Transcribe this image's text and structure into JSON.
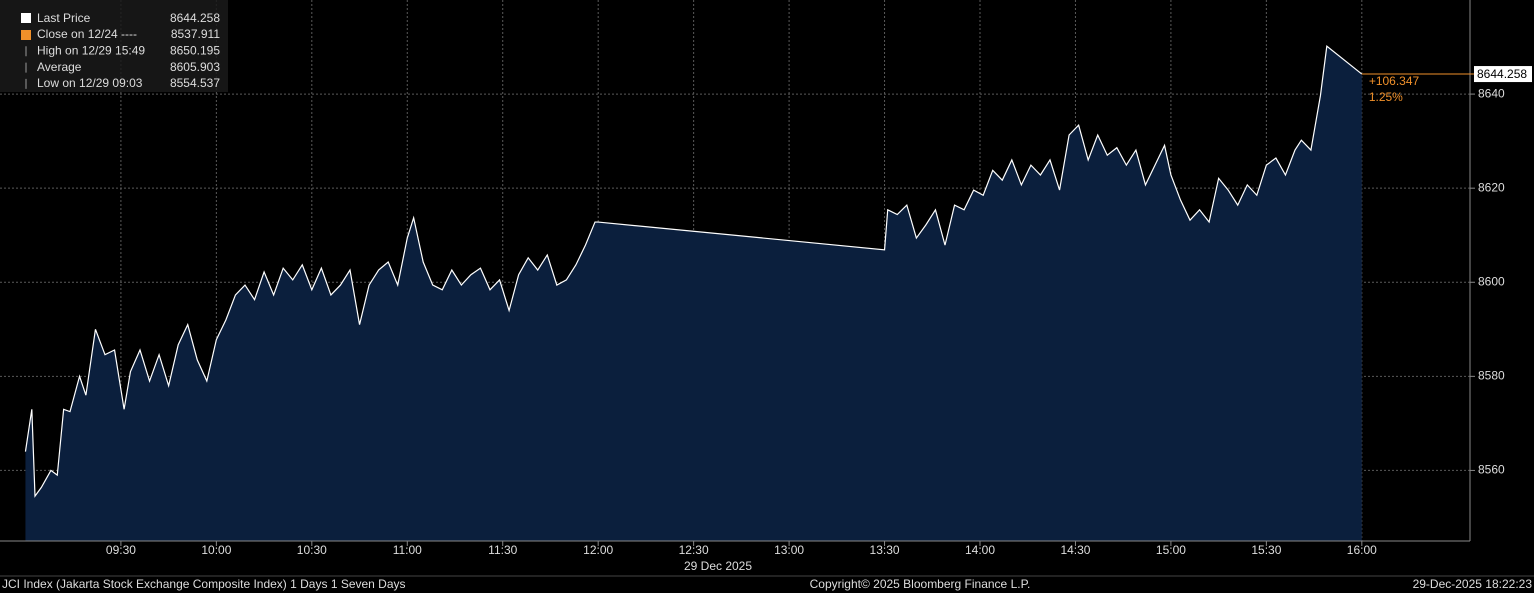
{
  "chart_data": {
    "type": "area",
    "x": [
      "09:00",
      "09:02",
      "09:03",
      "09:05",
      "09:08",
      "09:10",
      "09:12",
      "09:14",
      "09:17",
      "09:19",
      "09:22",
      "09:25",
      "09:28",
      "09:31",
      "09:33",
      "09:36",
      "09:39",
      "09:42",
      "09:45",
      "09:48",
      "09:51",
      "09:54",
      "09:57",
      "10:00",
      "10:03",
      "10:06",
      "10:09",
      "10:12",
      "10:15",
      "10:18",
      "10:21",
      "10:24",
      "10:27",
      "10:30",
      "10:33",
      "10:36",
      "10:39",
      "10:42",
      "10:45",
      "10:48",
      "10:51",
      "10:54",
      "10:57",
      "11:00",
      "11:02",
      "11:05",
      "11:08",
      "11:11",
      "11:14",
      "11:17",
      "11:20",
      "11:23",
      "11:26",
      "11:29",
      "11:32",
      "11:35",
      "11:38",
      "11:41",
      "11:44",
      "11:47",
      "11:50",
      "11:53",
      "11:56",
      "11:59",
      "12:00",
      "13:30",
      "13:31",
      "13:34",
      "13:37",
      "13:40",
      "13:43",
      "13:46",
      "13:49",
      "13:52",
      "13:55",
      "13:58",
      "14:01",
      "14:04",
      "14:07",
      "14:10",
      "14:13",
      "14:16",
      "14:19",
      "14:22",
      "14:25",
      "14:28",
      "14:31",
      "14:34",
      "14:37",
      "14:40",
      "14:43",
      "14:46",
      "14:49",
      "14:52",
      "14:55",
      "14:58",
      "15:00",
      "15:03",
      "15:06",
      "15:09",
      "15:12",
      "15:15",
      "15:18",
      "15:21",
      "15:24",
      "15:27",
      "15:30",
      "15:33",
      "15:36",
      "15:39",
      "15:41",
      "15:44",
      "15:47",
      "15:49",
      "16:00"
    ],
    "series": [
      {
        "name": "Last Price",
        "color": "#ffffff",
        "fill": "#0b1f3d",
        "values": [
          8564,
          8573,
          8554.537,
          8556.4,
          8560,
          8559,
          8573,
          8572.5,
          8580,
          8576,
          8590,
          8584.6,
          8585.6,
          8573,
          8581,
          8585.6,
          8579,
          8584.6,
          8578,
          8586.7,
          8591,
          8583.5,
          8579,
          8587.8,
          8592,
          8597.3,
          8599.4,
          8596.3,
          8602.2,
          8597.3,
          8603,
          8600.5,
          8603.7,
          8598.4,
          8603,
          8597.3,
          8599.4,
          8602.6,
          8591,
          8599.4,
          8602.6,
          8604.3,
          8599.4,
          8609.4,
          8613.7,
          8604.3,
          8599.4,
          8598.4,
          8602.6,
          8599.4,
          8601.6,
          8603,
          8598.4,
          8600.5,
          8594,
          8601.6,
          8605.2,
          8602.6,
          8605.8,
          8599.4,
          8600.5,
          8603.7,
          8607.9,
          8612.8,
          8612.8,
          8606.9,
          8615.4,
          8614.4,
          8616.4,
          8609.4,
          8612.2,
          8615.4,
          8607.9,
          8616.4,
          8615.4,
          8619.6,
          8618.5,
          8623.8,
          8621.7,
          8626,
          8620.7,
          8624.9,
          8622.8,
          8626,
          8619.6,
          8631.3,
          8633.4,
          8626,
          8631.3,
          8627,
          8628.6,
          8624.9,
          8628.1,
          8620.7,
          8624.9,
          8629.1,
          8622.8,
          8617.5,
          8613.2,
          8615.4,
          8612.8,
          8622.1,
          8619.6,
          8616.4,
          8620.7,
          8618.5,
          8624.9,
          8626.4,
          8622.8,
          8628.1,
          8630.2,
          8628.1,
          8639.7,
          8650.195,
          8644.258
        ]
      }
    ],
    "xlim": [
      "08:52",
      "16:34"
    ],
    "xticks": [
      "09:30",
      "10:00",
      "10:30",
      "11:00",
      "11:30",
      "12:00",
      "12:30",
      "13:00",
      "13:30",
      "14:00",
      "14:30",
      "15:00",
      "15:30",
      "16:00"
    ],
    "date_label": "29 Dec 2025",
    "ylim": [
      8545,
      8660
    ],
    "yticks": [
      8560,
      8580,
      8600,
      8620,
      8640
    ],
    "grid": true,
    "last_price": 8644.258,
    "last_line_color": "#f0902a",
    "change_label": "+106.347",
    "change_pct_label": "1.25%",
    "legend": [
      {
        "label": "Close on 12/24 ----",
        "value": 8537.911,
        "color": "#f0902a"
      },
      {
        "label": "High on 12/29 15:49",
        "value": 8650.195
      },
      {
        "label": "Average",
        "value": 8605.903
      },
      {
        "label": "Low on 12/29 09:03",
        "value": 8554.537
      }
    ],
    "footer_left": "JCI Index (Jakarta Stock Exchange Composite Index) 1 Days 1 Seven Days",
    "footer_center": "Copyright© 2025 Bloomberg Finance L.P.",
    "footer_right": "29-Dec-2025 18:22:23"
  }
}
